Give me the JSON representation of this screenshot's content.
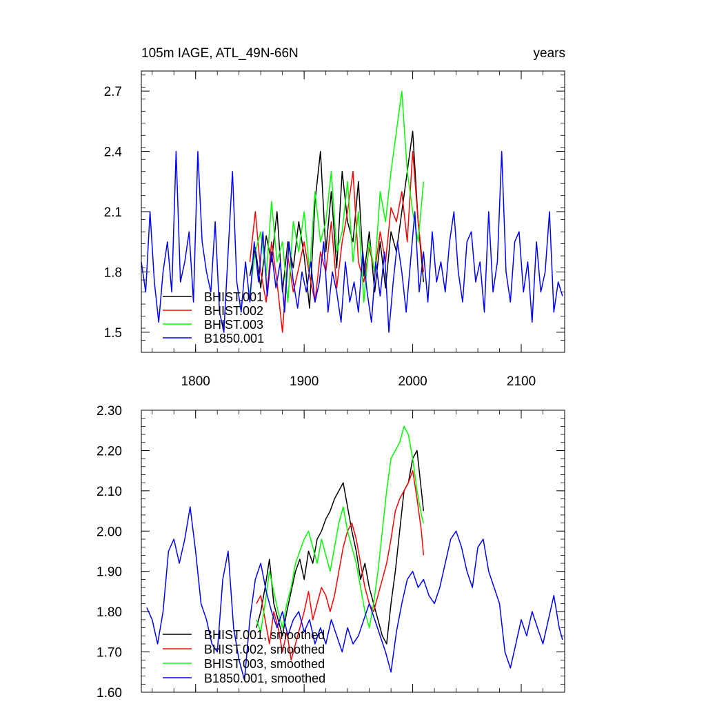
{
  "colors": {
    "BHIST.001": "#000000",
    "BHIST.002": "#ff0000",
    "BHIST.003": "#00ff00",
    "B1850.001": "#0000ff"
  },
  "chart_data": [
    {
      "type": "line",
      "title": "105m IAGE, ATL_49N-66N",
      "title_right": "years",
      "xlim": [
        1750,
        2140
      ],
      "ylim": [
        1.4,
        2.8
      ],
      "xticks": [
        1800,
        1900,
        2000,
        2100
      ],
      "xtick_labels": [
        "1800",
        "1900",
        "2000",
        "2100"
      ],
      "yticks": [
        1.5,
        1.8,
        2.1,
        2.4,
        2.7
      ],
      "ytick_labels": [
        "1.5",
        "1.8",
        "2.1",
        "2.4",
        "2.7"
      ],
      "legend_location": "bottom-left",
      "series": [
        {
          "name": "BHIST.001",
          "color": "#000000",
          "x": [
            1850,
            1855,
            1860,
            1865,
            1870,
            1875,
            1880,
            1885,
            1890,
            1895,
            1900,
            1905,
            1910,
            1915,
            1920,
            1925,
            1930,
            1935,
            1940,
            1945,
            1950,
            1955,
            1960,
            1965,
            1970,
            1975,
            1980,
            1985,
            1990,
            1995,
            2000,
            2005,
            2010
          ],
          "y": [
            1.78,
            1.92,
            1.72,
            1.98,
            1.85,
            2.1,
            1.7,
            1.95,
            1.82,
            2.05,
            1.88,
            1.62,
            2.15,
            2.4,
            1.9,
            2.2,
            1.82,
            2.3,
            2.05,
            1.95,
            2.25,
            1.78,
            2.0,
            1.7,
            1.95,
            1.72,
            2.0,
            1.9,
            2.1,
            2.3,
            2.5,
            2.05,
            1.75
          ]
        },
        {
          "name": "BHIST.002",
          "color": "#ff0000",
          "x": [
            1850,
            1855,
            1860,
            1865,
            1870,
            1875,
            1880,
            1885,
            1890,
            1895,
            1900,
            1905,
            1910,
            1915,
            1920,
            1925,
            1930,
            1935,
            1940,
            1945,
            1950,
            1955,
            1960,
            1965,
            1970,
            1975,
            1980,
            1985,
            1990,
            1995,
            2000,
            2005,
            2010
          ],
          "y": [
            1.85,
            2.1,
            1.8,
            1.65,
            1.95,
            1.75,
            1.5,
            1.88,
            1.7,
            1.82,
            1.95,
            1.78,
            1.65,
            1.9,
            1.8,
            2.05,
            1.72,
            1.95,
            2.1,
            2.3,
            1.85,
            1.75,
            1.92,
            1.8,
            2.0,
            1.85,
            2.12,
            2.05,
            2.2,
            1.95,
            2.4,
            2.05,
            1.8
          ]
        },
        {
          "name": "BHIST.003",
          "color": "#00ff00",
          "x": [
            1850,
            1855,
            1860,
            1865,
            1870,
            1875,
            1880,
            1885,
            1890,
            1895,
            1900,
            1905,
            1910,
            1915,
            1920,
            1925,
            1930,
            1935,
            1940,
            1945,
            1950,
            1955,
            1960,
            1965,
            1970,
            1975,
            1980,
            1985,
            1990,
            1995,
            2000,
            2005,
            2010
          ],
          "y": [
            1.7,
            1.9,
            2.0,
            1.78,
            2.15,
            1.85,
            1.95,
            1.65,
            2.05,
            1.9,
            2.1,
            1.8,
            2.2,
            1.95,
            2.05,
            2.3,
            1.9,
            2.0,
            2.25,
            1.85,
            2.1,
            1.65,
            1.95,
            1.8,
            2.2,
            2.05,
            2.3,
            2.5,
            2.7,
            2.3,
            2.1,
            1.95,
            2.25
          ]
        },
        {
          "name": "B1850.001",
          "color": "#0000ff",
          "x": [
            1750,
            1754,
            1758,
            1762,
            1766,
            1770,
            1774,
            1778,
            1782,
            1786,
            1790,
            1794,
            1798,
            1802,
            1806,
            1810,
            1814,
            1818,
            1822,
            1826,
            1830,
            1834,
            1838,
            1842,
            1846,
            1850,
            1854,
            1858,
            1862,
            1866,
            1870,
            1874,
            1878,
            1882,
            1886,
            1890,
            1894,
            1898,
            1902,
            1906,
            1910,
            1914,
            1918,
            1922,
            1926,
            1930,
            1934,
            1938,
            1942,
            1946,
            1950,
            1954,
            1958,
            1962,
            1966,
            1970,
            1974,
            1978,
            1982,
            1986,
            1990,
            1994,
            1998,
            2002,
            2006,
            2010,
            2014,
            2018,
            2022,
            2026,
            2030,
            2034,
            2038,
            2042,
            2046,
            2050,
            2054,
            2058,
            2062,
            2066,
            2070,
            2074,
            2078,
            2082,
            2086,
            2090,
            2094,
            2098,
            2102,
            2106,
            2110,
            2114,
            2118,
            2122,
            2126,
            2130,
            2134,
            2138
          ],
          "y": [
            1.85,
            1.7,
            2.1,
            1.75,
            1.55,
            1.8,
            1.95,
            1.7,
            2.4,
            1.75,
            1.85,
            2.0,
            1.65,
            2.4,
            1.95,
            1.8,
            1.7,
            2.05,
            1.6,
            1.5,
            1.9,
            2.3,
            1.75,
            1.6,
            1.85,
            1.65,
            1.95,
            1.75,
            2.0,
            1.68,
            1.9,
            1.72,
            1.85,
            1.6,
            1.95,
            1.75,
            1.62,
            1.8,
            1.7,
            1.85,
            1.65,
            1.75,
            1.95,
            1.6,
            1.8,
            1.7,
            1.55,
            1.85,
            1.65,
            1.75,
            1.6,
            1.9,
            1.7,
            1.55,
            1.85,
            1.68,
            1.9,
            1.5,
            1.75,
            1.95,
            1.8,
            1.6,
            1.85,
            2.1,
            1.7,
            1.9,
            1.65,
            2.0,
            1.75,
            1.85,
            1.7,
            1.95,
            2.1,
            1.8,
            1.65,
            1.95,
            2.0,
            1.75,
            1.85,
            1.6,
            2.1,
            1.7,
            1.85,
            2.4,
            1.8,
            1.65,
            1.95,
            2.0,
            1.7,
            1.85,
            1.55,
            1.95,
            1.7,
            1.8,
            2.1,
            1.6,
            1.75,
            1.68
          ]
        }
      ]
    },
    {
      "type": "line",
      "xlim": [
        1750,
        2140
      ],
      "ylim": [
        1.6,
        2.3
      ],
      "xticks": [
        1800,
        1900,
        2000,
        2100
      ],
      "yticks": [
        1.6,
        1.7,
        1.8,
        1.9,
        2.0,
        2.1,
        2.2,
        2.3
      ],
      "ytick_labels": [
        "1.60",
        "1.70",
        "1.80",
        "1.90",
        "2.00",
        "2.10",
        "2.20",
        "2.30"
      ],
      "legend_location": "bottom-left",
      "series": [
        {
          "name": "BHIST.001, smoothed",
          "color": "#000000",
          "x": [
            1856,
            1860,
            1864,
            1868,
            1872,
            1876,
            1880,
            1884,
            1888,
            1892,
            1896,
            1900,
            1904,
            1908,
            1912,
            1916,
            1920,
            1924,
            1928,
            1932,
            1936,
            1940,
            1944,
            1948,
            1952,
            1956,
            1960,
            1964,
            1968,
            1972,
            1976,
            1980,
            1984,
            1988,
            1992,
            1996,
            2000,
            2004,
            2008,
            2010
          ],
          "y": [
            1.76,
            1.8,
            1.86,
            1.93,
            1.82,
            1.78,
            1.74,
            1.8,
            1.85,
            1.9,
            1.93,
            1.88,
            1.95,
            1.92,
            1.98,
            2.0,
            2.03,
            2.05,
            2.08,
            2.1,
            2.12,
            2.06,
            2.0,
            1.95,
            1.88,
            1.92,
            1.86,
            1.82,
            1.78,
            1.74,
            1.72,
            1.82,
            1.9,
            2.0,
            2.1,
            2.12,
            2.18,
            2.2,
            2.1,
            2.05
          ]
        },
        {
          "name": "BHIST.002, smoothed",
          "color": "#ff0000",
          "x": [
            1856,
            1860,
            1864,
            1868,
            1872,
            1876,
            1880,
            1884,
            1888,
            1892,
            1896,
            1900,
            1904,
            1908,
            1912,
            1916,
            1920,
            1924,
            1928,
            1932,
            1936,
            1940,
            1944,
            1948,
            1952,
            1956,
            1960,
            1964,
            1968,
            1972,
            1976,
            1980,
            1984,
            1988,
            1992,
            1996,
            2000,
            2004,
            2008,
            2010
          ],
          "y": [
            1.82,
            1.84,
            1.78,
            1.72,
            1.8,
            1.76,
            1.7,
            1.75,
            1.68,
            1.72,
            1.76,
            1.8,
            1.85,
            1.78,
            1.82,
            1.86,
            1.84,
            1.8,
            1.84,
            1.9,
            1.96,
            2.0,
            2.02,
            1.98,
            1.92,
            1.86,
            1.82,
            1.8,
            1.84,
            1.88,
            1.92,
            1.98,
            2.05,
            2.08,
            2.1,
            2.12,
            2.15,
            2.08,
            2.0,
            1.94
          ]
        },
        {
          "name": "BHIST.003, smoothed",
          "color": "#00ff00",
          "x": [
            1856,
            1860,
            1864,
            1868,
            1872,
            1876,
            1880,
            1884,
            1888,
            1892,
            1896,
            1900,
            1904,
            1908,
            1912,
            1916,
            1920,
            1924,
            1928,
            1932,
            1936,
            1940,
            1944,
            1948,
            1952,
            1956,
            1960,
            1964,
            1968,
            1972,
            1976,
            1980,
            1984,
            1988,
            1992,
            1996,
            2000,
            2004,
            2008,
            2010
          ],
          "y": [
            1.78,
            1.75,
            1.82,
            1.9,
            1.85,
            1.8,
            1.76,
            1.82,
            1.86,
            1.92,
            1.95,
            1.98,
            2.0,
            1.96,
            1.92,
            1.98,
            1.94,
            1.9,
            1.96,
            2.02,
            2.06,
            2.0,
            1.96,
            1.92,
            1.86,
            1.8,
            1.76,
            1.82,
            1.9,
            2.0,
            2.1,
            2.18,
            2.2,
            2.22,
            2.26,
            2.24,
            2.18,
            2.1,
            2.04,
            2.02
          ]
        },
        {
          "name": "B1850.001, smoothed",
          "color": "#0000ff",
          "x": [
            1755,
            1760,
            1765,
            1770,
            1775,
            1780,
            1785,
            1790,
            1795,
            1800,
            1805,
            1810,
            1815,
            1820,
            1825,
            1830,
            1835,
            1840,
            1845,
            1850,
            1855,
            1860,
            1865,
            1870,
            1875,
            1880,
            1885,
            1890,
            1895,
            1900,
            1905,
            1910,
            1915,
            1920,
            1925,
            1930,
            1935,
            1940,
            1945,
            1950,
            1955,
            1960,
            1965,
            1970,
            1975,
            1980,
            1985,
            1990,
            1995,
            2000,
            2005,
            2010,
            2015,
            2020,
            2025,
            2030,
            2035,
            2040,
            2045,
            2050,
            2055,
            2060,
            2065,
            2070,
            2075,
            2080,
            2085,
            2090,
            2095,
            2100,
            2105,
            2110,
            2115,
            2120,
            2125,
            2130,
            2135,
            2138
          ],
          "y": [
            1.81,
            1.78,
            1.72,
            1.8,
            1.95,
            1.98,
            1.92,
            1.98,
            2.06,
            1.95,
            1.82,
            1.78,
            1.72,
            1.7,
            1.88,
            1.95,
            1.76,
            1.68,
            1.63,
            1.78,
            1.88,
            1.92,
            1.85,
            1.8,
            1.76,
            1.8,
            1.74,
            1.78,
            1.8,
            1.75,
            1.78,
            1.72,
            1.76,
            1.72,
            1.78,
            1.74,
            1.7,
            1.76,
            1.72,
            1.74,
            1.78,
            1.82,
            1.78,
            1.74,
            1.7,
            1.65,
            1.75,
            1.82,
            1.88,
            1.9,
            1.86,
            1.88,
            1.84,
            1.82,
            1.86,
            1.92,
            1.98,
            2.0,
            1.96,
            1.9,
            1.86,
            1.96,
            1.98,
            1.9,
            1.86,
            1.82,
            1.7,
            1.66,
            1.72,
            1.78,
            1.74,
            1.8,
            1.76,
            1.72,
            1.78,
            1.84,
            1.76,
            1.73
          ]
        }
      ]
    }
  ]
}
